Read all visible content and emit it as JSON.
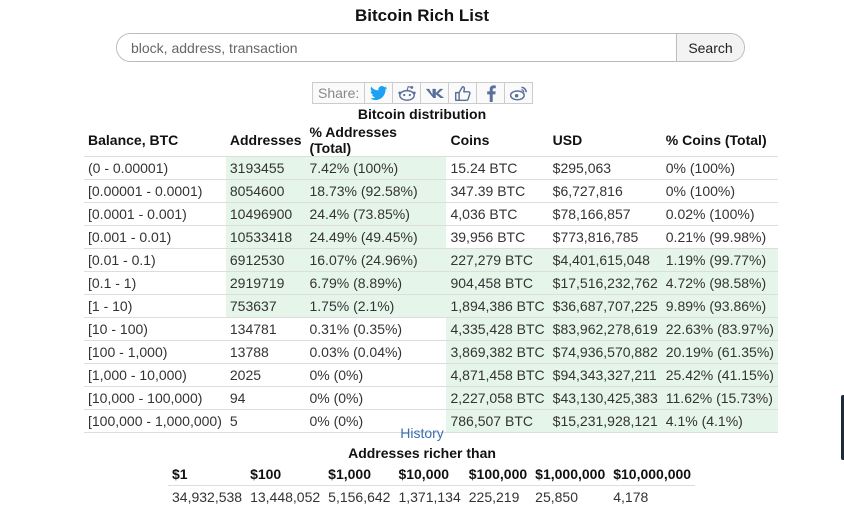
{
  "page": {
    "title": "Bitcoin Rich List"
  },
  "search": {
    "placeholder": "block, address, transaction",
    "value": "",
    "button_label": "Search"
  },
  "share": {
    "label": "Share:",
    "icons": [
      "twitter-icon",
      "reddit-icon",
      "vk-icon",
      "like-icon",
      "facebook-icon",
      "weibo-icon"
    ]
  },
  "distribution": {
    "title": "Bitcoin distribution",
    "columns": [
      "Balance, BTC",
      "Addresses",
      "% Addresses (Total)",
      "Coins",
      "USD",
      "% Coins (Total)"
    ],
    "rows": [
      {
        "balance": "(0 - 0.00001)",
        "addresses": "3193455",
        "pct_addresses": "7.42% (100%)",
        "coins": "15.24 BTC",
        "usd": "$295,063",
        "pct_coins": "0% (100%)",
        "addr_share": 0.0742,
        "coin_share": 0.0
      },
      {
        "balance": "[0.00001 - 0.0001)",
        "addresses": "8054600",
        "pct_addresses": "18.73% (92.58%)",
        "coins": "347.39 BTC",
        "usd": "$6,727,816",
        "pct_coins": "0% (100%)",
        "addr_share": 0.1873,
        "coin_share": 0.0
      },
      {
        "balance": "[0.0001 - 0.001)",
        "addresses": "10496900",
        "pct_addresses": "24.4% (73.85%)",
        "coins": "4,036 BTC",
        "usd": "$78,166,857",
        "pct_coins": "0.02% (100%)",
        "addr_share": 0.244,
        "coin_share": 0.0002
      },
      {
        "balance": "[0.001 - 0.01)",
        "addresses": "10533418",
        "pct_addresses": "24.49% (49.45%)",
        "coins": "39,956 BTC",
        "usd": "$773,816,785",
        "pct_coins": "0.21% (99.98%)",
        "addr_share": 0.2449,
        "coin_share": 0.0021
      },
      {
        "balance": "[0.01 - 0.1)",
        "addresses": "6912530",
        "pct_addresses": "16.07% (24.96%)",
        "coins": "227,279 BTC",
        "usd": "$4,401,615,048",
        "pct_coins": "1.19% (99.77%)",
        "addr_share": 0.1607,
        "coin_share": 0.0119
      },
      {
        "balance": "[0.1 - 1)",
        "addresses": "2919719",
        "pct_addresses": "6.79% (8.89%)",
        "coins": "904,458 BTC",
        "usd": "$17,516,232,762",
        "pct_coins": "4.72% (98.58%)",
        "addr_share": 0.0679,
        "coin_share": 0.0472
      },
      {
        "balance": "[1 - 10)",
        "addresses": "753637",
        "pct_addresses": "1.75% (2.1%)",
        "coins": "1,894,386 BTC",
        "usd": "$36,687,707,225",
        "pct_coins": "9.89% (93.86%)",
        "addr_share": 0.0175,
        "coin_share": 0.0989
      },
      {
        "balance": "[10 - 100)",
        "addresses": "134781",
        "pct_addresses": "0.31% (0.35%)",
        "coins": "4,335,428 BTC",
        "usd": "$83,962,278,619",
        "pct_coins": "22.63% (83.97%)",
        "addr_share": 0.0031,
        "coin_share": 0.2263
      },
      {
        "balance": "[100 - 1,000)",
        "addresses": "13788",
        "pct_addresses": "0.03% (0.04%)",
        "coins": "3,869,382 BTC",
        "usd": "$74,936,570,882",
        "pct_coins": "20.19% (61.35%)",
        "addr_share": 0.0003,
        "coin_share": 0.2019
      },
      {
        "balance": "[1,000 - 10,000)",
        "addresses": "2025",
        "pct_addresses": "0% (0%)",
        "coins": "4,871,458 BTC",
        "usd": "$94,343,327,211",
        "pct_coins": "25.42% (41.15%)",
        "addr_share": 0.0,
        "coin_share": 0.2542
      },
      {
        "balance": "[10,000 - 100,000)",
        "addresses": "94",
        "pct_addresses": "0% (0%)",
        "coins": "2,227,058 BTC",
        "usd": "$43,130,425,383",
        "pct_coins": "11.62% (15.73%)",
        "addr_share": 0.0,
        "coin_share": 0.1162
      },
      {
        "balance": "[100,000 - 1,000,000)",
        "addresses": "5",
        "pct_addresses": "0% (0%)",
        "coins": "786,507 BTC",
        "usd": "$15,231,928,121",
        "pct_coins": "4.1% (4.1%)",
        "addr_share": 0.0,
        "coin_share": 0.041
      }
    ]
  },
  "history_link": "History",
  "richer": {
    "title": "Addresses richer than",
    "headers": [
      "$1",
      "$100",
      "$1,000",
      "$10,000",
      "$100,000",
      "$1,000,000",
      "$10,000,000"
    ],
    "values": [
      "34,932,538",
      "13,448,052",
      "5,156,642",
      "1,371,134",
      "225,219",
      "25,850",
      "4,178"
    ]
  },
  "colors": {
    "heat": "#e6f5ea",
    "link": "#3a6fb0",
    "twitter": "#1da1f2",
    "icon": "#5a6f9a"
  }
}
